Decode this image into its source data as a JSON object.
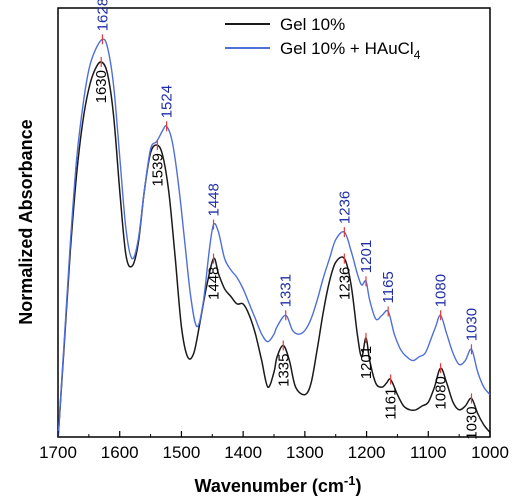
{
  "chart_data": {
    "type": "line",
    "xlabel": "Wavenumber (cm",
    "xlabel_sup": "-1",
    "xlabel_tail": ")",
    "ylabel": "Normalized Absorbance",
    "xlim": [
      1700,
      1000
    ],
    "x_reversed": true,
    "xticks": [
      "1700",
      "1600",
      "1500",
      "1400",
      "1300",
      "1200",
      "1100",
      "1000"
    ],
    "yticks_shown": false,
    "legend": {
      "placement": "top-right",
      "entries": [
        {
          "label": "Gel 10%",
          "color": "#1a1a1a"
        },
        {
          "label": "Gel 10% + HAuCl",
          "sub": "4",
          "color": "#4f6fd8"
        }
      ]
    },
    "series": [
      {
        "name": "Gel 10%",
        "color": "#1a1a1a",
        "x": [
          1700,
          1690,
          1680,
          1670,
          1660,
          1650,
          1640,
          1630,
          1620,
          1610,
          1600,
          1590,
          1580,
          1570,
          1560,
          1550,
          1539,
          1530,
          1520,
          1510,
          1500,
          1490,
          1480,
          1470,
          1460,
          1448,
          1440,
          1430,
          1420,
          1410,
          1400,
          1390,
          1380,
          1370,
          1360,
          1350,
          1345,
          1335,
          1325,
          1315,
          1300,
          1290,
          1280,
          1270,
          1260,
          1250,
          1236,
          1225,
          1215,
          1208,
          1201,
          1195,
          1185,
          1175,
          1168,
          1161,
          1150,
          1140,
          1130,
          1120,
          1110,
          1100,
          1090,
          1080,
          1070,
          1060,
          1050,
          1040,
          1030,
          1020,
          1010,
          1000
        ],
        "y": [
          0.0,
          0.25,
          0.5,
          0.7,
          0.84,
          0.93,
          0.98,
          1.0,
          0.97,
          0.86,
          0.66,
          0.49,
          0.46,
          0.52,
          0.66,
          0.76,
          0.78,
          0.75,
          0.65,
          0.48,
          0.3,
          0.22,
          0.23,
          0.31,
          0.4,
          0.48,
          0.44,
          0.4,
          0.38,
          0.36,
          0.36,
          0.33,
          0.28,
          0.21,
          0.14,
          0.18,
          0.22,
          0.25,
          0.21,
          0.14,
          0.12,
          0.15,
          0.24,
          0.34,
          0.42,
          0.47,
          0.48,
          0.41,
          0.28,
          0.22,
          0.27,
          0.21,
          0.15,
          0.14,
          0.15,
          0.16,
          0.12,
          0.09,
          0.08,
          0.08,
          0.09,
          0.1,
          0.14,
          0.19,
          0.15,
          0.1,
          0.08,
          0.09,
          0.11,
          0.07,
          0.04,
          0.02
        ]
      },
      {
        "name": "Gel 10% + HAuCl4",
        "color": "#4f6fd8",
        "x": [
          1700,
          1690,
          1680,
          1670,
          1660,
          1650,
          1640,
          1628,
          1620,
          1610,
          1600,
          1590,
          1580,
          1570,
          1560,
          1550,
          1540,
          1530,
          1524,
          1515,
          1505,
          1495,
          1485,
          1475,
          1465,
          1455,
          1448,
          1440,
          1430,
          1420,
          1410,
          1400,
          1390,
          1380,
          1370,
          1360,
          1350,
          1345,
          1331,
          1320,
          1310,
          1300,
          1290,
          1280,
          1270,
          1260,
          1250,
          1236,
          1225,
          1215,
          1208,
          1201,
          1195,
          1185,
          1175,
          1165,
          1155,
          1145,
          1135,
          1125,
          1115,
          1105,
          1095,
          1088,
          1080,
          1070,
          1060,
          1050,
          1040,
          1030,
          1020,
          1010,
          1000
        ],
        "y": [
          0.0,
          0.26,
          0.52,
          0.74,
          0.88,
          0.98,
          1.03,
          1.06,
          1.04,
          0.94,
          0.75,
          0.56,
          0.48,
          0.53,
          0.66,
          0.77,
          0.79,
          0.82,
          0.83,
          0.79,
          0.68,
          0.53,
          0.38,
          0.3,
          0.36,
          0.5,
          0.57,
          0.55,
          0.48,
          0.45,
          0.43,
          0.4,
          0.36,
          0.32,
          0.28,
          0.26,
          0.28,
          0.3,
          0.33,
          0.29,
          0.28,
          0.29,
          0.32,
          0.37,
          0.43,
          0.48,
          0.53,
          0.55,
          0.5,
          0.44,
          0.41,
          0.42,
          0.37,
          0.32,
          0.33,
          0.34,
          0.28,
          0.24,
          0.22,
          0.21,
          0.22,
          0.23,
          0.27,
          0.3,
          0.33,
          0.28,
          0.23,
          0.2,
          0.21,
          0.24,
          0.18,
          0.14,
          0.12
        ]
      }
    ],
    "annotations": [
      {
        "text": "1628",
        "x": 1628,
        "series": 1,
        "pos": "above",
        "color": "#1f2fa8"
      },
      {
        "text": "1524",
        "x": 1524,
        "series": 1,
        "pos": "above",
        "color": "#1f2fa8"
      },
      {
        "text": "1448",
        "x": 1448,
        "series": 1,
        "pos": "above",
        "color": "#1f2fa8"
      },
      {
        "text": "1331",
        "x": 1331,
        "series": 1,
        "pos": "above",
        "color": "#1f2fa8"
      },
      {
        "text": "1236",
        "x": 1236,
        "series": 1,
        "pos": "above",
        "color": "#1f2fa8"
      },
      {
        "text": "1201",
        "x": 1201,
        "series": 1,
        "pos": "above",
        "color": "#1f2fa8"
      },
      {
        "text": "1165",
        "x": 1165,
        "series": 1,
        "pos": "above",
        "color": "#1f2fa8"
      },
      {
        "text": "1080",
        "x": 1080,
        "series": 1,
        "pos": "above",
        "color": "#1f2fa8"
      },
      {
        "text": "1030",
        "x": 1030,
        "series": 1,
        "pos": "above",
        "color": "#1f2fa8"
      },
      {
        "text": "1630",
        "x": 1630,
        "series": 0,
        "pos": "below",
        "color": "#000000"
      },
      {
        "text": "1539",
        "x": 1539,
        "series": 0,
        "pos": "below",
        "color": "#000000"
      },
      {
        "text": "1448",
        "x": 1448,
        "series": 0,
        "pos": "below",
        "color": "#000000"
      },
      {
        "text": "1335",
        "x": 1335,
        "series": 0,
        "pos": "below",
        "color": "#000000"
      },
      {
        "text": "1236",
        "x": 1236,
        "series": 0,
        "pos": "below",
        "color": "#000000"
      },
      {
        "text": "1201",
        "x": 1201,
        "series": 0,
        "pos": "below",
        "color": "#000000"
      },
      {
        "text": "1161",
        "x": 1161,
        "series": 0,
        "pos": "below",
        "color": "#000000"
      },
      {
        "text": "1080",
        "x": 1080,
        "series": 0,
        "pos": "below",
        "color": "#000000"
      },
      {
        "text": "1030",
        "x": 1030,
        "series": 0,
        "pos": "below",
        "color": "#000000"
      }
    ],
    "marker_color": "#e23b3b"
  }
}
